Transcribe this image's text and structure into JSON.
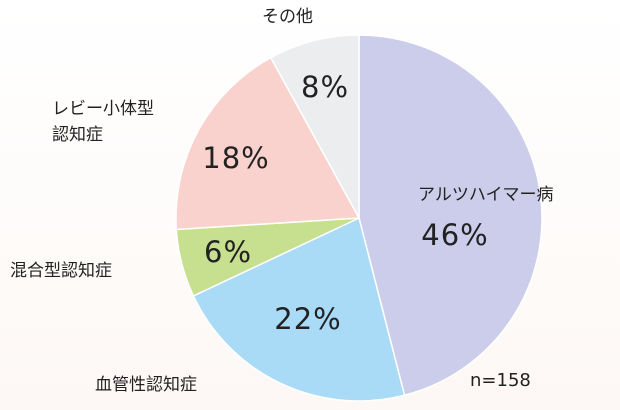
{
  "chart_data": {
    "type": "pie",
    "categories": [
      "アルツハイマー病",
      "血管性認知症",
      "混合型認知症",
      "レビー小体型\n認知症",
      "その他"
    ],
    "values": [
      46,
      22,
      6,
      18,
      8
    ],
    "value_labels": [
      "46%",
      "22%",
      "6%",
      "18%",
      "8%"
    ],
    "colors": [
      "#cbcdea",
      "#a9daf6",
      "#c6e08f",
      "#f9d2cd",
      "#ecedee"
    ],
    "annotation": "n=158"
  }
}
